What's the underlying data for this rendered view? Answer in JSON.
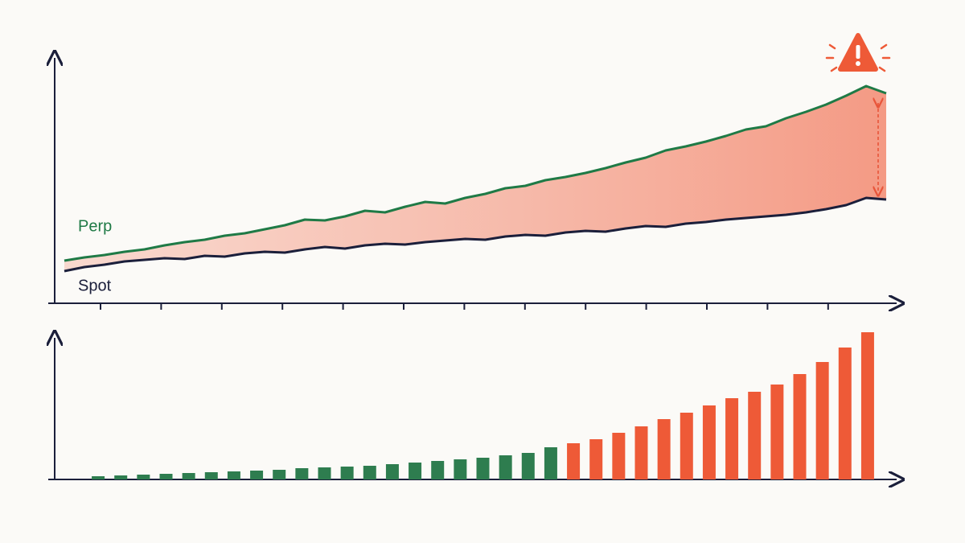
{
  "chart_data": [
    {
      "type": "line",
      "categories": [
        null,
        null,
        null,
        null,
        null,
        null,
        null,
        null,
        null,
        null,
        null,
        null,
        null,
        null,
        null,
        null,
        null,
        null,
        null,
        null,
        null,
        null,
        null,
        null,
        null,
        null,
        null,
        null,
        null,
        null,
        null,
        null,
        null,
        null,
        null,
        null,
        null,
        null,
        null,
        null,
        null,
        null
      ],
      "series": [
        {
          "name": "Perp",
          "color": "#1f7a46",
          "values": [
            53,
            57,
            60,
            64,
            67,
            72,
            76,
            79,
            84,
            87,
            92,
            97,
            104,
            103,
            108,
            115,
            113,
            120,
            126,
            124,
            131,
            136,
            143,
            146,
            153,
            157,
            162,
            168,
            175,
            181,
            190,
            195,
            201,
            208,
            216,
            220,
            230,
            238,
            247,
            258,
            270,
            261
          ]
        },
        {
          "name": "Spot",
          "color": "#1b1f3b",
          "values": [
            40,
            45,
            48,
            52,
            54,
            56,
            55,
            59,
            58,
            62,
            64,
            63,
            67,
            70,
            68,
            72,
            74,
            73,
            76,
            78,
            80,
            79,
            83,
            85,
            84,
            88,
            90,
            89,
            93,
            96,
            95,
            99,
            101,
            104,
            106,
            108,
            110,
            113,
            117,
            122,
            131,
            129
          ]
        }
      ],
      "ylim": [
        0,
        310
      ]
    },
    {
      "type": "bar",
      "categories": [
        null,
        null,
        null,
        null,
        null,
        null,
        null,
        null,
        null,
        null,
        null,
        null,
        null,
        null,
        null,
        null,
        null,
        null,
        null,
        null,
        null,
        null,
        null,
        null,
        null,
        null,
        null,
        null,
        null,
        null,
        null,
        null,
        null,
        null,
        null
      ],
      "values": [
        4,
        5,
        6,
        7,
        8,
        9,
        10,
        11,
        12,
        14,
        15,
        16,
        17,
        19,
        21,
        23,
        25,
        27,
        30,
        33,
        40,
        45,
        50,
        58,
        66,
        75,
        83,
        92,
        101,
        109,
        118,
        131,
        146,
        164,
        183
      ],
      "colors": [
        "#2e7d4f",
        "#2e7d4f",
        "#2e7d4f",
        "#2e7d4f",
        "#2e7d4f",
        "#2e7d4f",
        "#2e7d4f",
        "#2e7d4f",
        "#2e7d4f",
        "#2e7d4f",
        "#2e7d4f",
        "#2e7d4f",
        "#2e7d4f",
        "#2e7d4f",
        "#2e7d4f",
        "#2e7d4f",
        "#2e7d4f",
        "#2e7d4f",
        "#2e7d4f",
        "#2e7d4f",
        "#2e7d4f",
        "#ee5a37",
        "#ee5a37",
        "#ee5a37",
        "#ee5a37",
        "#ee5a37",
        "#ee5a37",
        "#ee5a37",
        "#ee5a37",
        "#ee5a37",
        "#ee5a37",
        "#ee5a37",
        "#ee5a37",
        "#ee5a37",
        "#ee5a37"
      ],
      "ylim": [
        0,
        185
      ]
    }
  ]
}
